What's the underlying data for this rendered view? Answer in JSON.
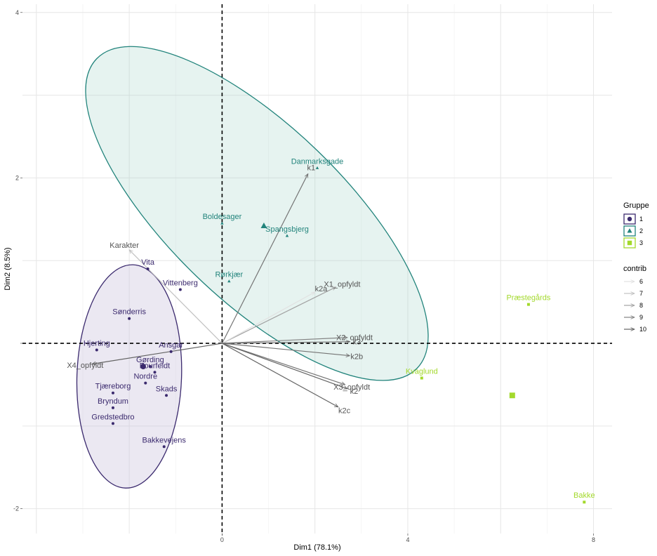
{
  "chart_data": {
    "type": "scatter",
    "xlabel": "Dim1 (78.1%)",
    "ylabel": "Dim2 (8.5%)",
    "xlim": [
      -4.3,
      8.4
    ],
    "ylim": [
      -2.3,
      4.1
    ],
    "x_ticks": [
      0,
      4,
      8
    ],
    "y_ticks": [
      -2,
      2,
      4
    ],
    "x_tick_labels": [
      "0",
      "4",
      "8"
    ],
    "y_tick_labels": [
      "-2",
      "2",
      "4"
    ],
    "grid": true,
    "reference_lines": {
      "x": 0,
      "y": 0,
      "style": "dashed"
    },
    "colors": {
      "1": "#3b2a6e",
      "2": "#21837b",
      "3": "#a3d92c"
    },
    "groups": [
      {
        "name": "1",
        "marker": "circle",
        "color": "#3b2a6e",
        "centroid": {
          "x": -1.7,
          "y": -0.28
        },
        "ellipse": {
          "cx": -2.0,
          "cy": -0.4,
          "rx": 1.62,
          "ry": 3.46,
          "angle": -2,
          "fill": "#c7bedb",
          "fill_opacity": 0.35
        },
        "points": [
          {
            "label": "Vita",
            "x": -1.6,
            "y": 0.9
          },
          {
            "label": "Vittenberg",
            "x": -0.9,
            "y": 0.65
          },
          {
            "label": "Sønderris",
            "x": -2.0,
            "y": 0.3
          },
          {
            "label": "Hjerting",
            "x": -2.7,
            "y": -0.08
          },
          {
            "label": "Ansgar",
            "x": -1.1,
            "y": -0.1
          },
          {
            "label": "Gørding",
            "x": -1.55,
            "y": -0.28
          },
          {
            "label": "Fourfeldt",
            "x": -1.45,
            "y": -0.35
          },
          {
            "label": "Nordre",
            "x": -1.65,
            "y": -0.48
          },
          {
            "label": "Skads",
            "x": -1.2,
            "y": -0.63
          },
          {
            "label": "Tjæreborg",
            "x": -2.35,
            "y": -0.6
          },
          {
            "label": "Bryndum",
            "x": -2.35,
            "y": -0.78
          },
          {
            "label": "Gredstedbro",
            "x": -2.35,
            "y": -0.97
          },
          {
            "label": "Bakkevejens",
            "x": -1.25,
            "y": -1.25
          }
        ]
      },
      {
        "name": "2",
        "marker": "triangle",
        "color": "#21837b",
        "centroid": {
          "x": 0.9,
          "y": 1.42
        },
        "ellipse": {
          "cx": 0.75,
          "cy": 1.57,
          "rx": 2.7,
          "ry": 6.9,
          "angle": 46,
          "fill": "#9ccfc5",
          "fill_opacity": 0.25
        },
        "points": [
          {
            "label": "Danmarksgade",
            "x": 2.05,
            "y": 2.12
          },
          {
            "label": "Boldesager",
            "x": 0.0,
            "y": 1.45
          },
          {
            "label": "Spangsbjerg",
            "x": 1.4,
            "y": 1.3
          },
          {
            "label": "Rørkjær",
            "x": 0.15,
            "y": 0.75
          }
        ]
      },
      {
        "name": "3",
        "marker": "square",
        "color": "#a3d92c",
        "centroid": {
          "x": 6.25,
          "y": -0.63
        },
        "points": [
          {
            "label": "Præstegårds",
            "x": 6.6,
            "y": 0.47
          },
          {
            "label": "Kvaglund",
            "x": 4.3,
            "y": -0.42
          },
          {
            "label": "Bakke",
            "x": 7.8,
            "y": -1.92
          }
        ]
      }
    ],
    "variables": [
      {
        "label": "k1",
        "x": 1.85,
        "y": 2.05,
        "contrib": 9.5
      },
      {
        "label": "Karakter",
        "x": -2.0,
        "y": 1.13,
        "contrib": 7
      },
      {
        "label": "X1_opfyldt",
        "x": 2.45,
        "y": 0.68,
        "contrib": 8
      },
      {
        "label": "k2a",
        "x": 2.0,
        "y": 0.62,
        "contrib": 6
      },
      {
        "label": "X2_opfyldt",
        "x": 2.7,
        "y": 0.07,
        "contrib": 9
      },
      {
        "label": "k3",
        "x": 2.75,
        "y": 0.02,
        "contrib": 9.5
      },
      {
        "label": "k2b",
        "x": 2.75,
        "y": -0.15,
        "contrib": 9.5
      },
      {
        "label": "X3_opfyldt",
        "x": 2.65,
        "y": -0.5,
        "contrib": 9.5
      },
      {
        "label": "k2",
        "x": 2.7,
        "y": -0.55,
        "contrib": 10
      },
      {
        "label": "k2c",
        "x": 2.5,
        "y": -0.77,
        "contrib": 10
      },
      {
        "label": "X4_opfyldt",
        "x": -2.8,
        "y": -0.25,
        "contrib": 10
      }
    ],
    "legend": {
      "placement": "right",
      "groups_title": "Gruppe",
      "groups": [
        {
          "label": "1",
          "marker": "circle",
          "color": "#3b2a6e"
        },
        {
          "label": "2",
          "marker": "triangle",
          "color": "#21837b"
        },
        {
          "label": "3",
          "marker": "square",
          "color": "#a3d92c"
        }
      ],
      "contrib_title": "contrib",
      "contrib": [
        {
          "label": "6",
          "value": 6
        },
        {
          "label": "7",
          "value": 7
        },
        {
          "label": "8",
          "value": 8
        },
        {
          "label": "9",
          "value": 9
        },
        {
          "label": "10",
          "value": 10
        }
      ]
    }
  }
}
